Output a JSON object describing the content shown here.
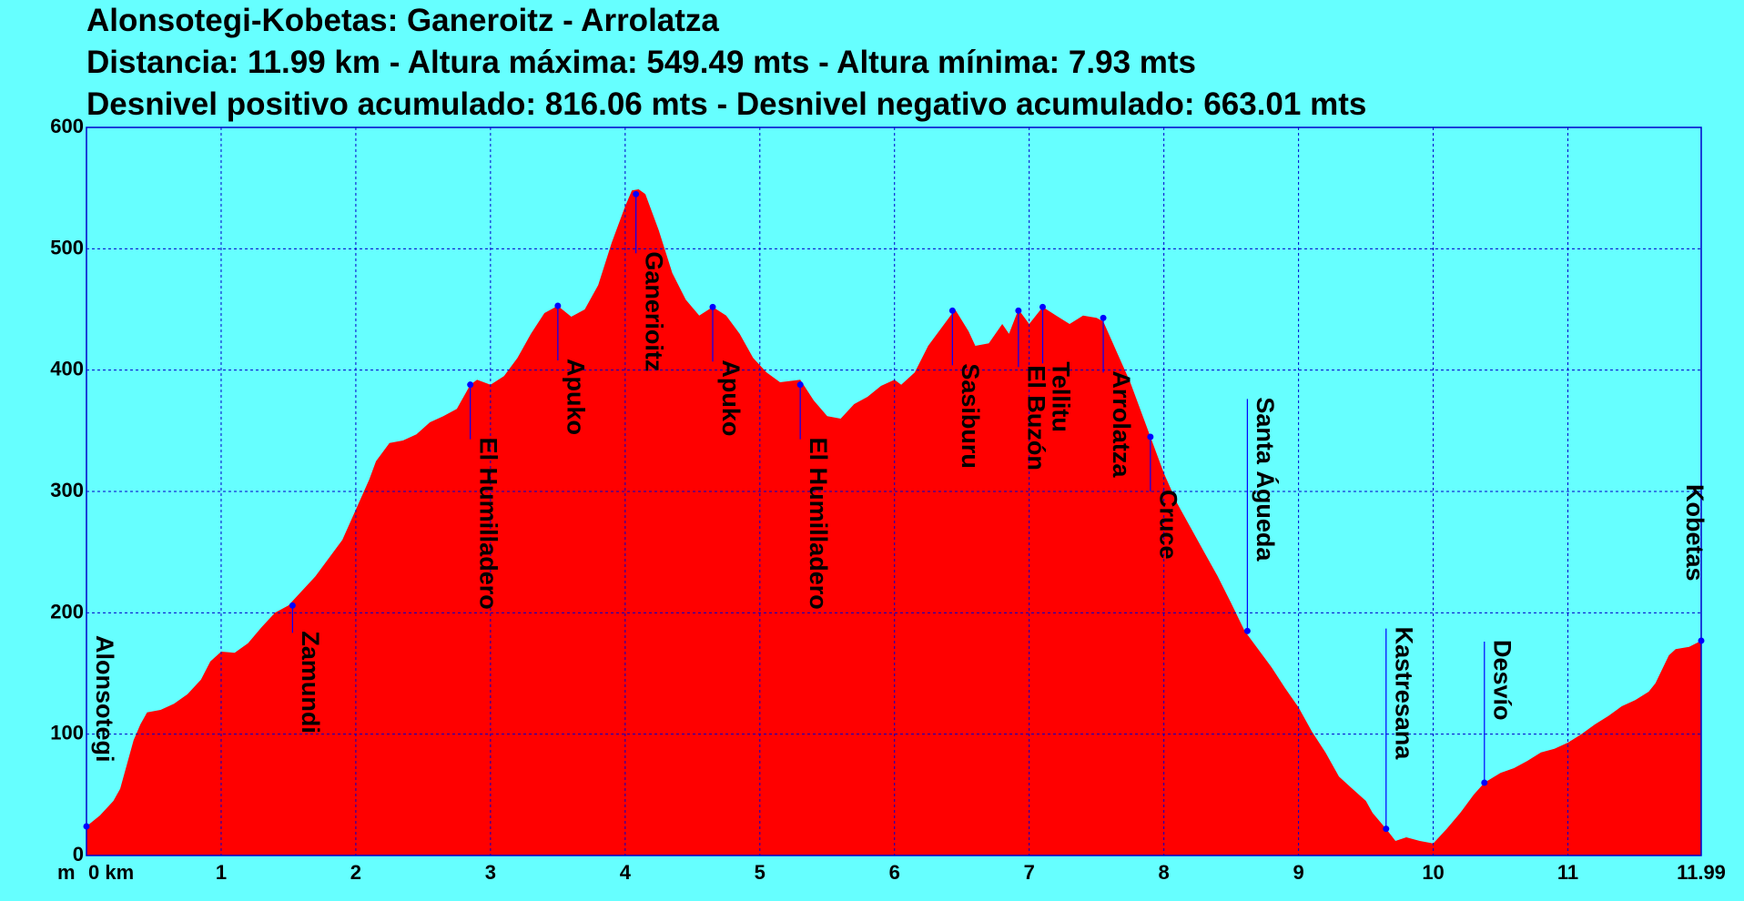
{
  "chart_data": {
    "type": "area",
    "title": "Alonsotegi-Kobetas: Ganeroitz - Arrolatza",
    "subtitle_lines": [
      "Distancia: 11.99 km - Altura máxima: 549.49 mts - Altura mínima: 7.93 mts",
      "Desnivel positivo acumulado: 816.06 mts - Desnivel negativo acumulado: 663.01 mts"
    ],
    "x_unit_label": "km",
    "y_unit_label": "m",
    "xlim": [
      0,
      11.99
    ],
    "ylim": [
      0,
      600
    ],
    "x_ticks": [
      {
        "value": 0,
        "label": "0 km"
      },
      {
        "value": 1,
        "label": "1"
      },
      {
        "value": 2,
        "label": "2"
      },
      {
        "value": 3,
        "label": "3"
      },
      {
        "value": 4,
        "label": "4"
      },
      {
        "value": 5,
        "label": "5"
      },
      {
        "value": 6,
        "label": "6"
      },
      {
        "value": 7,
        "label": "7"
      },
      {
        "value": 8,
        "label": "8"
      },
      {
        "value": 9,
        "label": "9"
      },
      {
        "value": 10,
        "label": "10"
      },
      {
        "value": 11,
        "label": "11"
      },
      {
        "value": 11.99,
        "label": "11.99"
      }
    ],
    "y_ticks": [
      {
        "value": 0,
        "label": "0"
      },
      {
        "value": 100,
        "label": "100"
      },
      {
        "value": 200,
        "label": "200"
      },
      {
        "value": 300,
        "label": "300"
      },
      {
        "value": 400,
        "label": "400"
      },
      {
        "value": 500,
        "label": "500"
      },
      {
        "value": 600,
        "label": "600"
      }
    ],
    "grid": true,
    "colors": {
      "background": "#66ffff",
      "fill": "#ff0000",
      "grid": "#0000cc",
      "marker": "#0000ff"
    },
    "profile": [
      [
        0,
        24
      ],
      [
        0.1,
        33
      ],
      [
        0.2,
        45
      ],
      [
        0.25,
        55
      ],
      [
        0.3,
        75
      ],
      [
        0.35,
        95
      ],
      [
        0.4,
        108
      ],
      [
        0.45,
        118
      ],
      [
        0.55,
        120
      ],
      [
        0.65,
        125
      ],
      [
        0.75,
        133
      ],
      [
        0.85,
        145
      ],
      [
        0.92,
        160
      ],
      [
        1.0,
        168
      ],
      [
        1.1,
        167
      ],
      [
        1.2,
        175
      ],
      [
        1.3,
        188
      ],
      [
        1.4,
        200
      ],
      [
        1.5,
        206
      ],
      [
        1.6,
        218
      ],
      [
        1.7,
        230
      ],
      [
        1.8,
        245
      ],
      [
        1.9,
        260
      ],
      [
        2.0,
        285
      ],
      [
        2.1,
        310
      ],
      [
        2.15,
        325
      ],
      [
        2.25,
        340
      ],
      [
        2.35,
        342
      ],
      [
        2.45,
        347
      ],
      [
        2.55,
        357
      ],
      [
        2.65,
        362
      ],
      [
        2.75,
        368
      ],
      [
        2.85,
        388
      ],
      [
        2.9,
        392
      ],
      [
        3.0,
        388
      ],
      [
        3.1,
        395
      ],
      [
        3.2,
        410
      ],
      [
        3.3,
        430
      ],
      [
        3.4,
        447
      ],
      [
        3.5,
        453
      ],
      [
        3.6,
        444
      ],
      [
        3.7,
        450
      ],
      [
        3.8,
        470
      ],
      [
        3.9,
        505
      ],
      [
        4.0,
        535
      ],
      [
        4.05,
        548
      ],
      [
        4.1,
        549
      ],
      [
        4.15,
        545
      ],
      [
        4.25,
        515
      ],
      [
        4.35,
        480
      ],
      [
        4.45,
        458
      ],
      [
        4.55,
        445
      ],
      [
        4.65,
        452
      ],
      [
        4.75,
        445
      ],
      [
        4.85,
        430
      ],
      [
        4.95,
        410
      ],
      [
        5.05,
        398
      ],
      [
        5.15,
        390
      ],
      [
        5.3,
        392
      ],
      [
        5.4,
        375
      ],
      [
        5.5,
        362
      ],
      [
        5.6,
        360
      ],
      [
        5.7,
        372
      ],
      [
        5.8,
        378
      ],
      [
        5.9,
        387
      ],
      [
        6.0,
        392
      ],
      [
        6.05,
        388
      ],
      [
        6.15,
        398
      ],
      [
        6.25,
        420
      ],
      [
        6.35,
        435
      ],
      [
        6.45,
        450
      ],
      [
        6.55,
        432
      ],
      [
        6.6,
        420
      ],
      [
        6.7,
        422
      ],
      [
        6.8,
        438
      ],
      [
        6.85,
        430
      ],
      [
        6.92,
        450
      ],
      [
        7.0,
        438
      ],
      [
        7.1,
        452
      ],
      [
        7.2,
        445
      ],
      [
        7.3,
        438
      ],
      [
        7.4,
        445
      ],
      [
        7.5,
        443
      ],
      [
        7.55,
        440
      ],
      [
        7.65,
        415
      ],
      [
        7.75,
        390
      ],
      [
        7.85,
        360
      ],
      [
        7.9,
        345
      ],
      [
        8.0,
        315
      ],
      [
        8.1,
        290
      ],
      [
        8.2,
        270
      ],
      [
        8.3,
        250
      ],
      [
        8.4,
        230
      ],
      [
        8.5,
        208
      ],
      [
        8.6,
        185
      ],
      [
        8.7,
        170
      ],
      [
        8.8,
        155
      ],
      [
        8.9,
        138
      ],
      [
        9.0,
        122
      ],
      [
        9.1,
        102
      ],
      [
        9.2,
        85
      ],
      [
        9.3,
        65
      ],
      [
        9.4,
        55
      ],
      [
        9.5,
        45
      ],
      [
        9.55,
        35
      ],
      [
        9.65,
        22
      ],
      [
        9.72,
        12
      ],
      [
        9.8,
        15
      ],
      [
        9.9,
        12
      ],
      [
        10.0,
        10
      ],
      [
        10.1,
        22
      ],
      [
        10.2,
        35
      ],
      [
        10.3,
        50
      ],
      [
        10.38,
        60
      ],
      [
        10.5,
        68
      ],
      [
        10.6,
        72
      ],
      [
        10.7,
        78
      ],
      [
        10.8,
        85
      ],
      [
        10.9,
        88
      ],
      [
        11.0,
        93
      ],
      [
        11.1,
        100
      ],
      [
        11.2,
        108
      ],
      [
        11.3,
        115
      ],
      [
        11.4,
        123
      ],
      [
        11.5,
        128
      ],
      [
        11.6,
        135
      ],
      [
        11.65,
        142
      ],
      [
        11.75,
        165
      ],
      [
        11.8,
        170
      ],
      [
        11.9,
        172
      ],
      [
        11.99,
        177
      ]
    ],
    "waypoints": [
      {
        "name": "Alonsotegi",
        "x": 0.0,
        "y": 24
      },
      {
        "name": "Zamundi",
        "x": 1.53,
        "y": 206
      },
      {
        "name": "El Humilladero",
        "x": 2.85,
        "y": 388
      },
      {
        "name": "Apuko",
        "x": 3.5,
        "y": 453
      },
      {
        "name": "Ganerioitz",
        "x": 4.08,
        "y": 545
      },
      {
        "name": "Apuko",
        "x": 4.65,
        "y": 452
      },
      {
        "name": "El Humilladero",
        "x": 5.3,
        "y": 388
      },
      {
        "name": "Sasiburu",
        "x": 6.43,
        "y": 449
      },
      {
        "name": "El Buzón",
        "x": 6.92,
        "y": 449
      },
      {
        "name": "Tellitu",
        "x": 7.1,
        "y": 452
      },
      {
        "name": "Arrolatza",
        "x": 7.55,
        "y": 443
      },
      {
        "name": "Cruce",
        "x": 7.9,
        "y": 345
      },
      {
        "name": "Santa Águeda",
        "x": 8.62,
        "y": 185
      },
      {
        "name": "Kastresana",
        "x": 9.65,
        "y": 22
      },
      {
        "name": "Desvío",
        "x": 10.38,
        "y": 60
      },
      {
        "name": "Kobetas",
        "x": 11.99,
        "y": 177
      }
    ]
  }
}
